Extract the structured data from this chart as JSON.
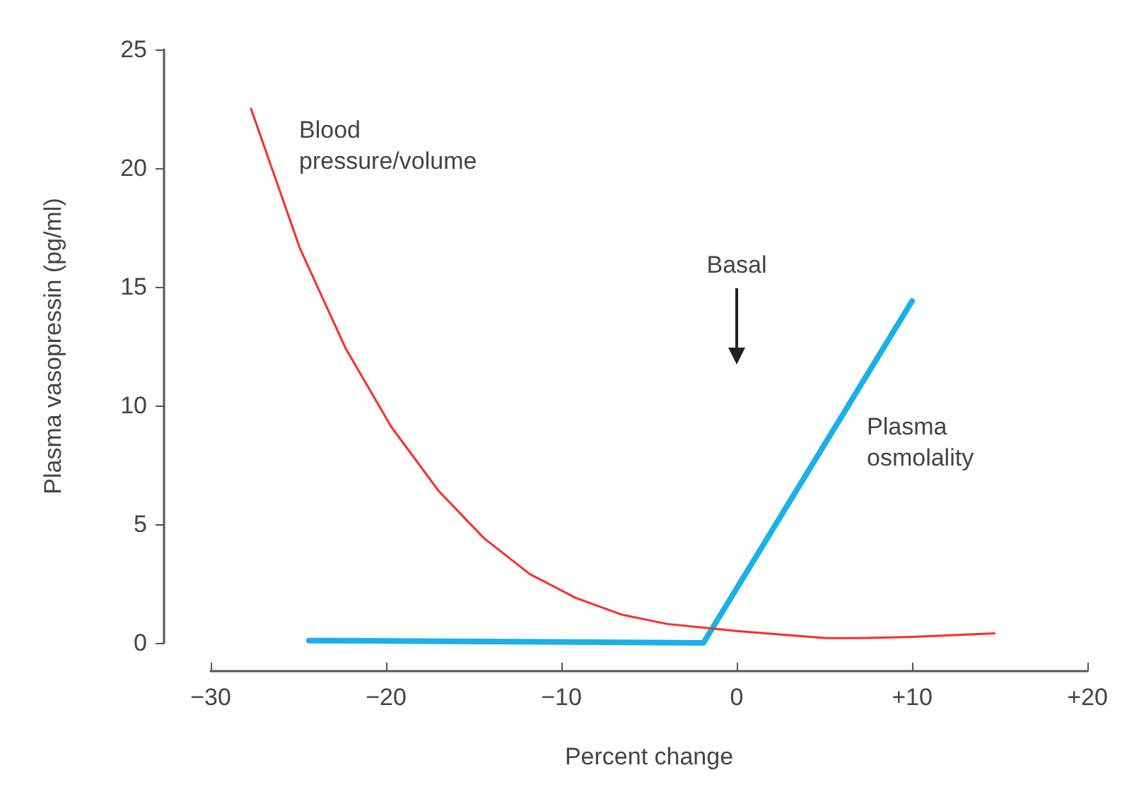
{
  "chart_data": {
    "type": "line",
    "xlabel": "Percent change",
    "ylabel": "Plasma vasopressin (pg/ml)",
    "xlim": [
      -30,
      20
    ],
    "xticks": [
      {
        "value": -30,
        "label": "−30"
      },
      {
        "value": -20,
        "label": "−20"
      },
      {
        "value": -10,
        "label": "−10"
      },
      0,
      {
        "value": 10,
        "label": "+10"
      },
      {
        "value": 20,
        "label": "+20"
      }
    ],
    "ylim": [
      0,
      25
    ],
    "yticks": [
      0,
      5,
      10,
      15,
      20,
      25
    ],
    "grid": false,
    "marker": "none",
    "line_style": "solid",
    "series": [
      {
        "name": "Blood pressure/volume",
        "color": "#ff2a2a",
        "x": [
          -27.7,
          -24.9,
          -22.3,
          -19.7,
          -17.0,
          -14.4,
          -11.8,
          -9.2,
          -6.6,
          -4.0,
          0,
          5.1,
          7,
          10,
          14.7
        ],
        "values": [
          22.5,
          16.6,
          12.4,
          9.1,
          6.4,
          4.4,
          2.9,
          1.9,
          1.2,
          0.8,
          0.5,
          0.2,
          0.2,
          0.25,
          0.4
        ]
      },
      {
        "name": "Plasma osmolality",
        "color": "#1ab0e8",
        "x": [
          -24.4,
          -1.9,
          10.0
        ],
        "values": [
          0.1,
          0,
          14.4
        ]
      }
    ],
    "annotations": [
      "Basal"
    ]
  }
}
